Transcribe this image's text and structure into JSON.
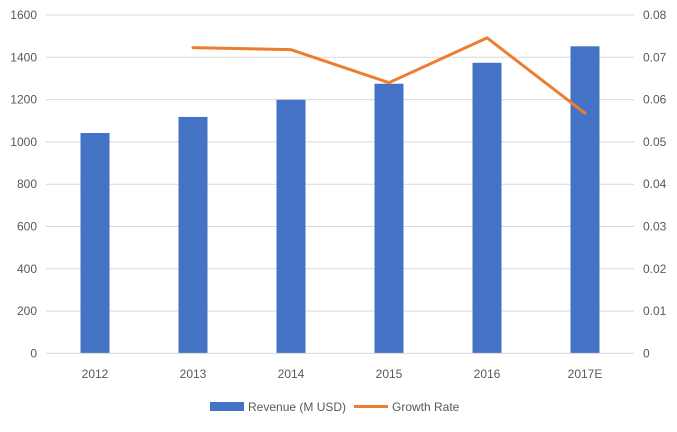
{
  "chart_data": {
    "type": "bar+line",
    "categories": [
      "2012",
      "2013",
      "2014",
      "2015",
      "2016",
      "2017E"
    ],
    "series": [
      {
        "name": "Revenue (M USD)",
        "type": "bar",
        "axis": "left",
        "color": "#4472C4",
        "values": [
          1042,
          1118,
          1199,
          1275,
          1374,
          1452
        ]
      },
      {
        "name": "Growth Rate",
        "type": "line",
        "axis": "right",
        "color": "#ED7D31",
        "values": [
          null,
          0.0723,
          0.0718,
          0.064,
          0.0746,
          0.0568
        ]
      }
    ],
    "ylim_left": [
      0,
      1600
    ],
    "yticks_left": [
      "0",
      "200",
      "400",
      "600",
      "800",
      "1000",
      "1200",
      "1400",
      "1600"
    ],
    "ylim_right": [
      0,
      0.08
    ],
    "yticks_right": [
      "0",
      "0.01",
      "0.02",
      "0.03",
      "0.04",
      "0.05",
      "0.06",
      "0.07",
      "0.08"
    ],
    "grid": true,
    "legend": "bottom"
  }
}
